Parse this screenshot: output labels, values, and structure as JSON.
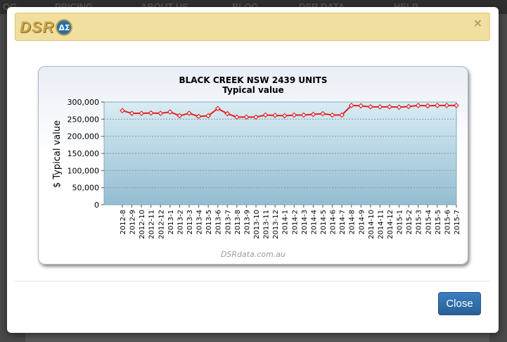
{
  "background_nav": [
    "OG",
    "PRICING",
    "ABOUT US",
    "BLOG",
    "DSR DATA",
    "HELP"
  ],
  "modal": {
    "logo_text": "DSR",
    "logo_badge": "ΔΣ",
    "close_x": "×",
    "close_button": "Close"
  },
  "chart_data": {
    "type": "line",
    "title": "BLACK CREEK NSW 2439 UNITS",
    "subtitle": "Typical value",
    "ylabel": "$ Typical value",
    "watermark": "DSRdata.com.au",
    "ylim": [
      0,
      300000
    ],
    "yticks": [
      "0",
      "50,000",
      "100,000",
      "150,000",
      "200,000",
      "250,000",
      "300,000"
    ],
    "line_color": "#e02020",
    "categories": [
      "2012-8",
      "2012-9",
      "2012-10",
      "2012-11",
      "2012-12",
      "2013-1",
      "2013-2",
      "2013-3",
      "2013-4",
      "2013-5",
      "2013-6",
      "2013-7",
      "2013-8",
      "2013-9",
      "2013-10",
      "2013-11",
      "2013-12",
      "2014-1",
      "2014-2",
      "2014-3",
      "2014-4",
      "2014-5",
      "2014-6",
      "2014-7",
      "2014-8",
      "2014-9",
      "2014-10",
      "2014-11",
      "2014-12",
      "2015-1",
      "2015-2",
      "2015-3",
      "2015-4",
      "2015-5",
      "2015-6",
      "2015-7"
    ],
    "values": [
      275000,
      267000,
      267000,
      268000,
      267000,
      271000,
      260000,
      267000,
      258000,
      260000,
      281000,
      266000,
      256000,
      256000,
      256000,
      262000,
      261000,
      260000,
      262000,
      262000,
      264000,
      266000,
      262000,
      262000,
      290000,
      289000,
      286000,
      286000,
      286000,
      285000,
      287000,
      290000,
      289000,
      290000,
      290000,
      290000
    ]
  }
}
